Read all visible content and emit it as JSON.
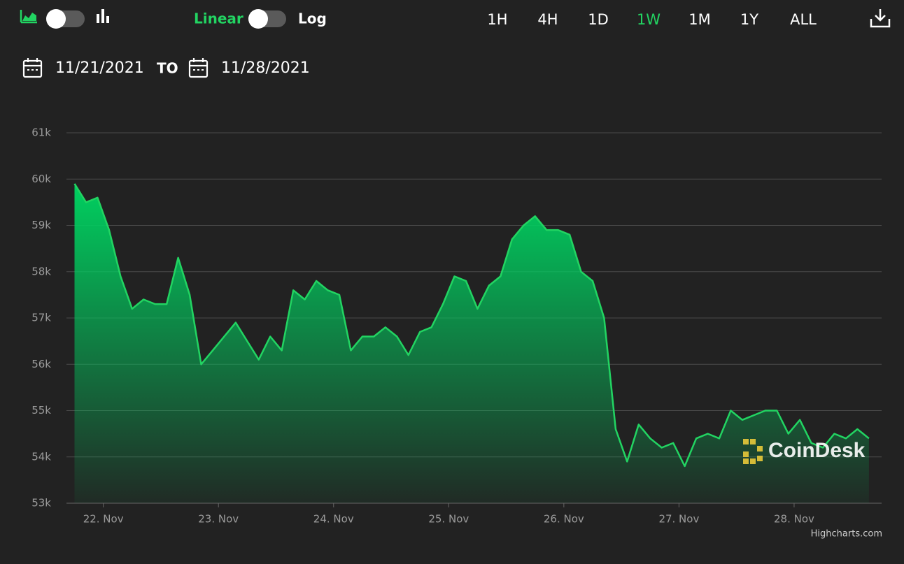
{
  "toolbar": {
    "scale_linear": "Linear",
    "scale_log": "Log",
    "ranges": [
      "1H",
      "4H",
      "1D",
      "1W",
      "1M",
      "1Y",
      "ALL"
    ],
    "active_range": 3
  },
  "date_range": {
    "from": "11/21/2021",
    "separator": "TO",
    "to": "11/28/2021"
  },
  "chart_data": {
    "type": "area",
    "x": [
      21.75,
      21.85,
      21.95,
      22.05,
      22.15,
      22.25,
      22.35,
      22.45,
      22.55,
      22.65,
      22.75,
      22.85,
      22.95,
      23.05,
      23.15,
      23.25,
      23.35,
      23.45,
      23.55,
      23.65,
      23.75,
      23.85,
      23.95,
      24.05,
      24.15,
      24.25,
      24.35,
      24.45,
      24.55,
      24.65,
      24.75,
      24.85,
      24.95,
      25.05,
      25.15,
      25.25,
      25.35,
      25.45,
      25.55,
      25.65,
      25.75,
      25.85,
      25.95,
      26.05,
      26.15,
      26.25,
      26.35,
      26.45,
      26.55,
      26.65,
      26.75,
      26.85,
      26.95,
      27.05,
      27.15,
      27.25,
      27.35,
      27.45,
      27.55,
      27.65,
      27.75,
      27.85,
      27.95,
      28.05,
      28.15,
      28.25,
      28.35,
      28.45,
      28.55,
      28.65
    ],
    "values": [
      59900,
      59500,
      59600,
      58900,
      57900,
      57200,
      57400,
      57300,
      57300,
      58300,
      57500,
      56000,
      56300,
      56600,
      56900,
      56500,
      56100,
      56600,
      56300,
      57600,
      57400,
      57800,
      57600,
      57500,
      56300,
      56600,
      56600,
      56800,
      56600,
      56200,
      56700,
      56800,
      57300,
      57900,
      57800,
      57200,
      57700,
      57900,
      58700,
      59000,
      59200,
      58900,
      58900,
      58800,
      58000,
      57800,
      57000,
      54600,
      53900,
      54700,
      54400,
      54200,
      54300,
      53800,
      54400,
      54500,
      54400,
      55000,
      54800,
      54900,
      55000,
      55000,
      54500,
      54800,
      54300,
      54200,
      54500,
      54400,
      54600,
      54400
    ],
    "color": "#22d462",
    "xlim": [
      21.68,
      28.76
    ],
    "xticks": [
      {
        "value": 22,
        "label": "22. Nov"
      },
      {
        "value": 23,
        "label": "23. Nov"
      },
      {
        "value": 24,
        "label": "24. Nov"
      },
      {
        "value": 25,
        "label": "25. Nov"
      },
      {
        "value": 26,
        "label": "26. Nov"
      },
      {
        "value": 27,
        "label": "27. Nov"
      },
      {
        "value": 28,
        "label": "28. Nov"
      }
    ],
    "ylim": [
      53000,
      61000
    ],
    "yticks": [
      {
        "value": 53000,
        "label": "53k"
      },
      {
        "value": 54000,
        "label": "54k"
      },
      {
        "value": 55000,
        "label": "55k"
      },
      {
        "value": 56000,
        "label": "56k"
      },
      {
        "value": 57000,
        "label": "57k"
      },
      {
        "value": 58000,
        "label": "58k"
      },
      {
        "value": 59000,
        "label": "59k"
      },
      {
        "value": 60000,
        "label": "60k"
      },
      {
        "value": 61000,
        "label": "61k"
      }
    ],
    "grid": true,
    "watermark": "CoinDesk",
    "credit": "Highcharts.com"
  }
}
